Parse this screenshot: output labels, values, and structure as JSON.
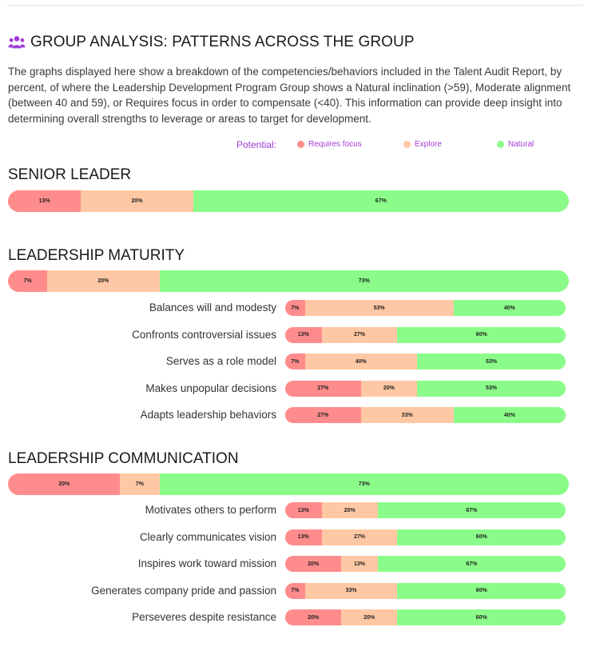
{
  "header": {
    "title": "GROUP ANALYSIS: PATTERNS ACROSS THE GROUP",
    "icon": "group-users-icon"
  },
  "intro": "The graphs displayed here show a breakdown of the competencies/behaviors included in the Talent Audit Report, by percent, of where the Leadership Development Program Group shows a Natural inclination (>59), Moderate alignment (between 40 and 59), or Requires focus in order to compensate (<40). This information can provide deep insight into determining overall strengths to leverage or areas to target for development.",
  "legend": {
    "title": "Potential:",
    "items": [
      {
        "label": "Requires focus",
        "color": "#ff8c8c"
      },
      {
        "label": "Explore",
        "color": "#ffc8a4"
      },
      {
        "label": "Natural",
        "color": "#8bfc89"
      }
    ]
  },
  "colors": {
    "requires_focus": "#ff8c8c",
    "explore": "#ffc8a4",
    "natural": "#8bfc89",
    "accent": "#a13bd8"
  },
  "chart_data": {
    "type": "bar",
    "stacked": true,
    "unit": "%",
    "series_names": [
      "Requires focus",
      "Explore",
      "Natural"
    ],
    "sections": [
      {
        "title": "SENIOR LEADER",
        "total": [
          13,
          20,
          67
        ],
        "rows": []
      },
      {
        "title": "LEADERSHIP MATURITY",
        "total": [
          7,
          20,
          73
        ],
        "rows": [
          {
            "label": "Balances will and modesty",
            "values": [
              7,
              53,
              40
            ]
          },
          {
            "label": "Confronts controversial issues",
            "values": [
              13,
              27,
              60
            ]
          },
          {
            "label": "Serves as a role model",
            "values": [
              7,
              40,
              53
            ]
          },
          {
            "label": "Makes unpopular decisions",
            "values": [
              27,
              20,
              53
            ]
          },
          {
            "label": "Adapts leadership behaviors",
            "values": [
              27,
              33,
              40
            ]
          }
        ]
      },
      {
        "title": "LEADERSHIP COMMUNICATION",
        "total": [
          20,
          7,
          73
        ],
        "rows": [
          {
            "label": "Motivates others to perform",
            "values": [
              13,
              20,
              67
            ]
          },
          {
            "label": "Clearly communicates vision",
            "values": [
              13,
              27,
              60
            ]
          },
          {
            "label": "Inspires work toward mission",
            "values": [
              20,
              13,
              67
            ]
          },
          {
            "label": "Generates company pride and passion",
            "values": [
              7,
              33,
              60
            ]
          },
          {
            "label": "Perseveres despite resistance",
            "values": [
              20,
              20,
              60
            ]
          }
        ]
      }
    ]
  }
}
